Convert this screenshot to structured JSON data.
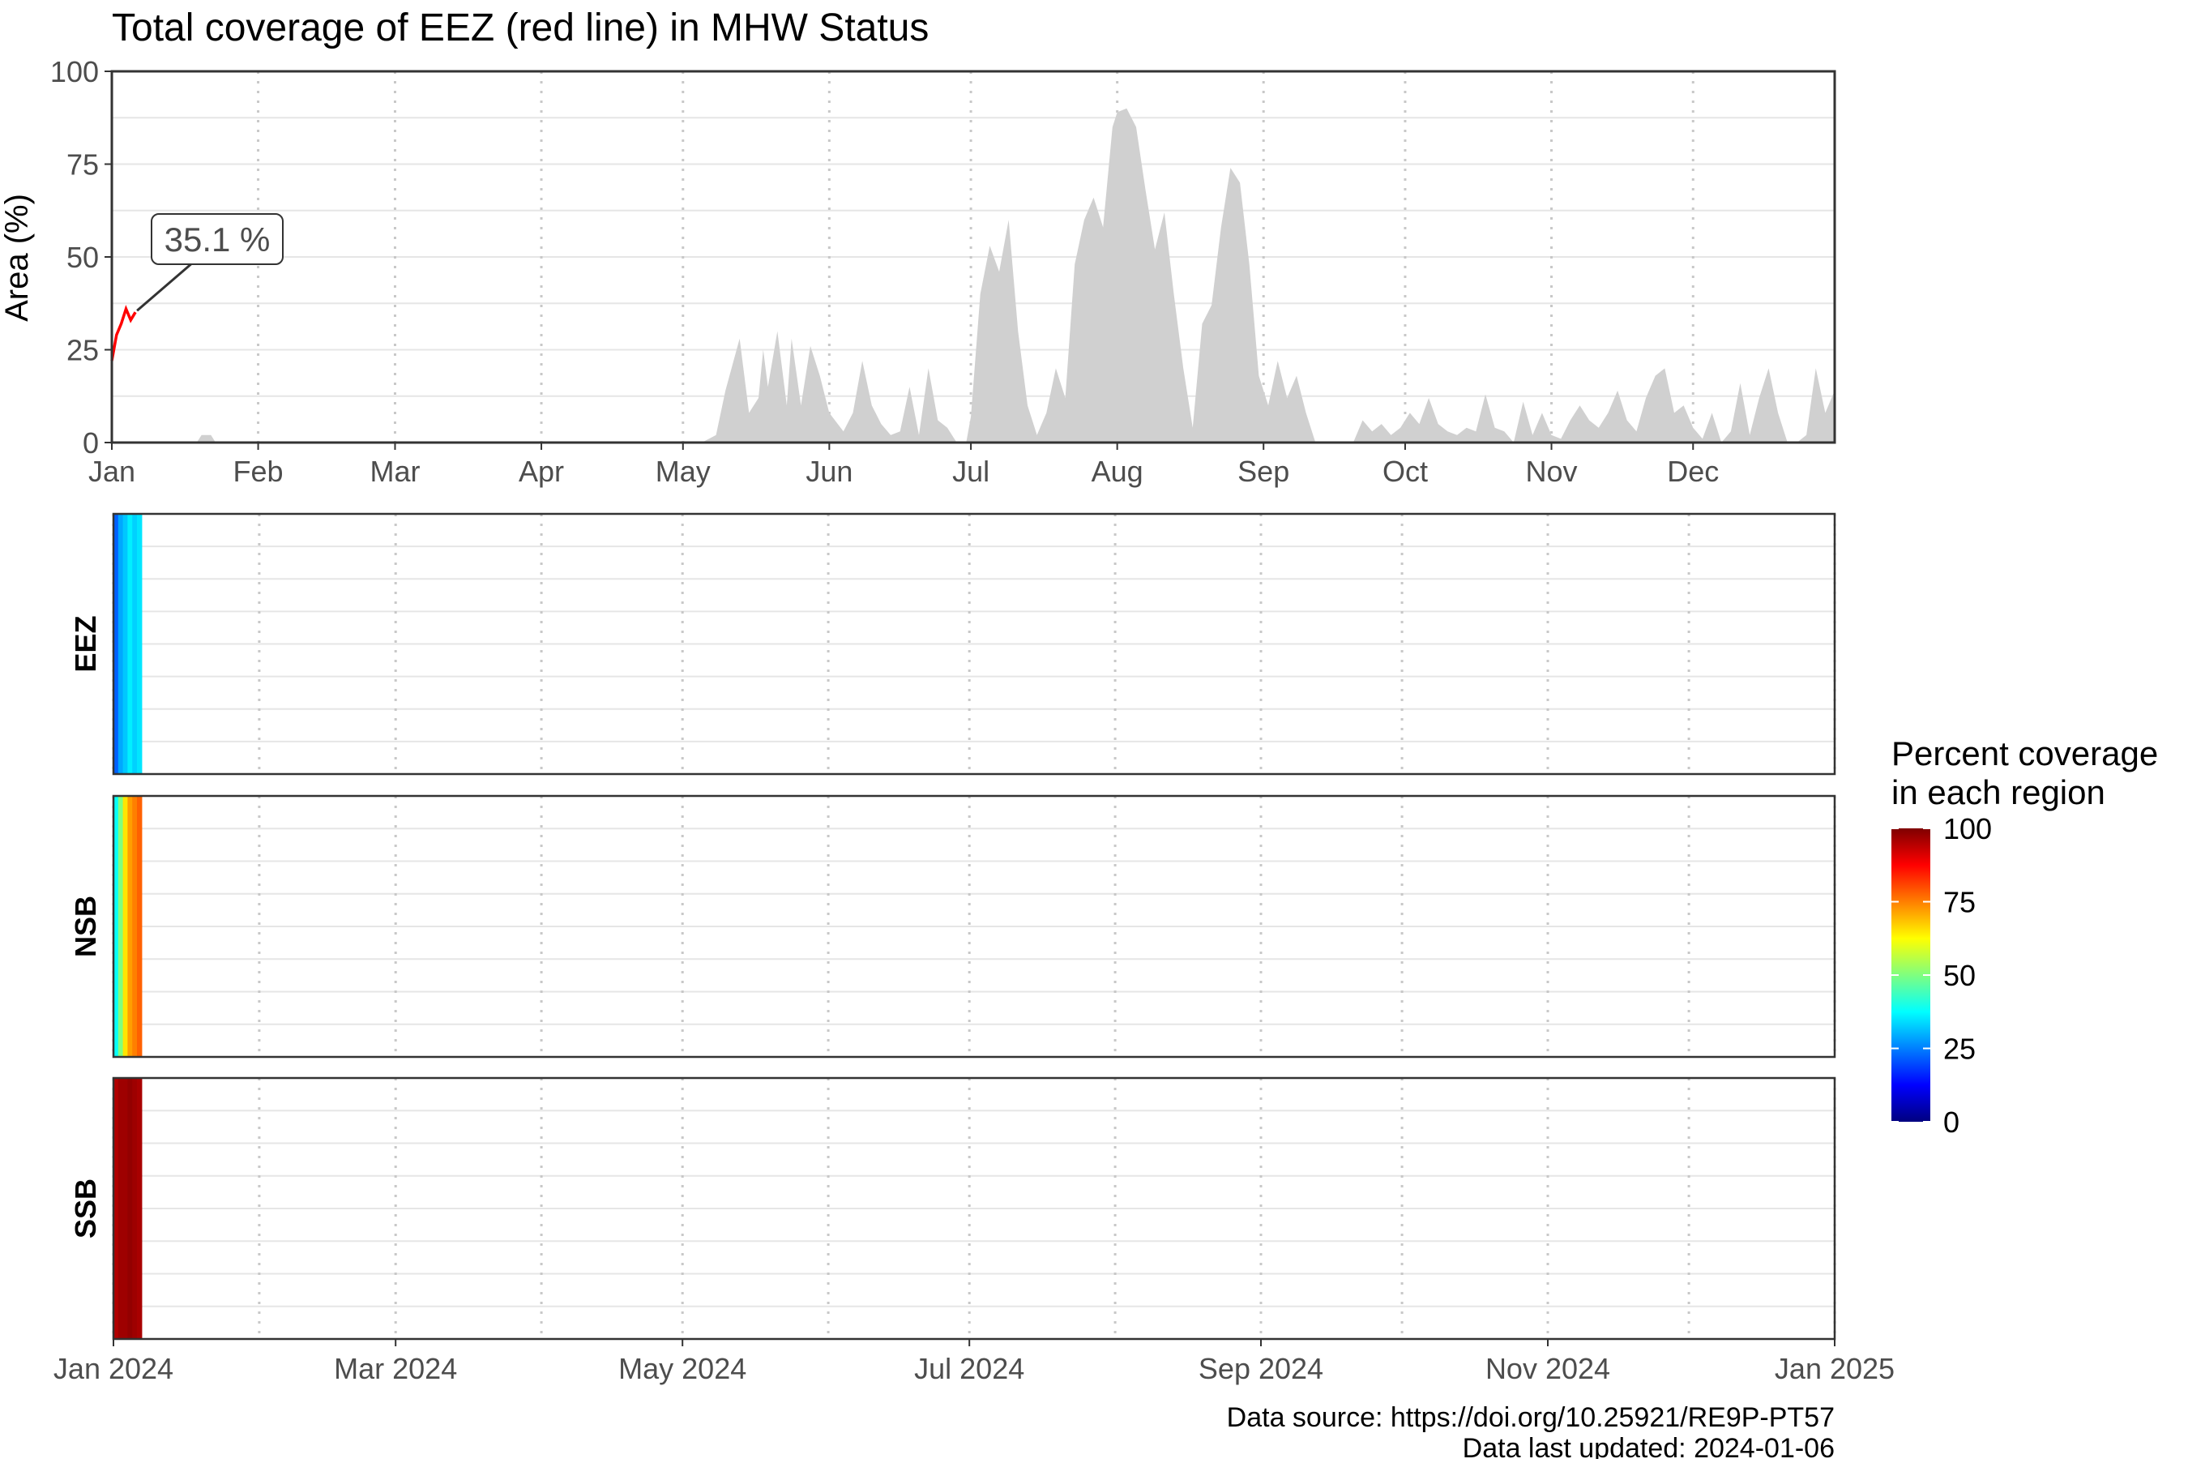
{
  "colors": {
    "red_line": "#ff0000",
    "area_fill": "#d0d0d0",
    "grid_major": "#e6e6e6",
    "grid_minor": "#c8c8c8",
    "frame": "#333333",
    "text": "#4d4d4d",
    "title_text": "#000000",
    "colorscale": [
      "#00007f",
      "#0000ff",
      "#007fff",
      "#00ffff",
      "#7fff7f",
      "#ffff00",
      "#ff7f00",
      "#ff0000",
      "#7f0000"
    ]
  },
  "chart_data": [
    {
      "type": "area",
      "title": "Total coverage of EEZ (red line) in MHW Status",
      "ylabel": "Area (%)",
      "xlabel": "",
      "ylim": [
        0,
        100
      ],
      "y_ticks": [
        0,
        25,
        50,
        75,
        100
      ],
      "x_tick_labels": [
        "Jan",
        "Feb",
        "Mar",
        "Apr",
        "May",
        "Jun",
        "Jul",
        "Aug",
        "Sep",
        "Oct",
        "Nov",
        "Dec"
      ],
      "x_tick_dates": [
        "2024-01-01",
        "2024-02-01",
        "2024-03-01",
        "2024-04-01",
        "2024-05-01",
        "2024-06-01",
        "2024-07-01",
        "2024-08-01",
        "2024-09-01",
        "2024-10-01",
        "2024-11-01",
        "2024-12-01"
      ],
      "xlim": [
        "2024-01-01",
        "2024-12-31"
      ],
      "grid": true,
      "annotation": {
        "label": "35.1 %",
        "date": "2024-01-06",
        "value": 35.1
      },
      "series": [
        {
          "name": "EEZ",
          "style": "line",
          "color": "#ff0000",
          "x": [
            "2024-01-01",
            "2024-01-02",
            "2024-01-03",
            "2024-01-04",
            "2024-01-05",
            "2024-01-06"
          ],
          "y": [
            22,
            29,
            32,
            36,
            33,
            35.1
          ]
        },
        {
          "style": "area",
          "color": "#d0d0d0",
          "x": [
            "2024-01-01",
            "2024-01-19",
            "2024-01-20",
            "2024-01-22",
            "2024-01-23",
            "2024-05-05",
            "2024-05-08",
            "2024-05-10",
            "2024-05-13",
            "2024-05-15",
            "2024-05-17",
            "2024-05-18",
            "2024-05-19",
            "2024-05-21",
            "2024-05-23",
            "2024-05-24",
            "2024-05-26",
            "2024-05-28",
            "2024-05-30",
            "2024-06-01",
            "2024-06-04",
            "2024-06-06",
            "2024-06-08",
            "2024-06-10",
            "2024-06-12",
            "2024-06-14",
            "2024-06-16",
            "2024-06-18",
            "2024-06-20",
            "2024-06-22",
            "2024-06-24",
            "2024-06-26",
            "2024-06-28",
            "2024-06-30",
            "2024-07-01",
            "2024-07-03",
            "2024-07-05",
            "2024-07-07",
            "2024-07-09",
            "2024-07-11",
            "2024-07-13",
            "2024-07-15",
            "2024-07-17",
            "2024-07-19",
            "2024-07-21",
            "2024-07-23",
            "2024-07-25",
            "2024-07-27",
            "2024-07-29",
            "2024-07-31",
            "2024-08-01",
            "2024-08-03",
            "2024-08-05",
            "2024-08-07",
            "2024-08-09",
            "2024-08-11",
            "2024-08-13",
            "2024-08-15",
            "2024-08-17",
            "2024-08-19",
            "2024-08-21",
            "2024-08-23",
            "2024-08-25",
            "2024-08-27",
            "2024-08-29",
            "2024-08-31",
            "2024-09-02",
            "2024-09-04",
            "2024-09-06",
            "2024-09-08",
            "2024-09-10",
            "2024-09-12",
            "2024-09-14",
            "2024-09-16",
            "2024-09-18",
            "2024-09-20",
            "2024-09-22",
            "2024-09-24",
            "2024-09-26",
            "2024-09-28",
            "2024-09-30",
            "2024-10-02",
            "2024-10-04",
            "2024-10-06",
            "2024-10-08",
            "2024-10-10",
            "2024-10-12",
            "2024-10-14",
            "2024-10-16",
            "2024-10-18",
            "2024-10-20",
            "2024-10-22",
            "2024-10-24",
            "2024-10-26",
            "2024-10-28",
            "2024-10-30",
            "2024-11-01",
            "2024-11-03",
            "2024-11-05",
            "2024-11-07",
            "2024-11-09",
            "2024-11-11",
            "2024-11-13",
            "2024-11-15",
            "2024-11-17",
            "2024-11-19",
            "2024-11-21",
            "2024-11-23",
            "2024-11-25",
            "2024-11-27",
            "2024-11-29",
            "2024-12-01",
            "2024-12-03",
            "2024-12-05",
            "2024-12-07",
            "2024-12-09",
            "2024-12-11",
            "2024-12-13",
            "2024-12-15",
            "2024-12-17",
            "2024-12-19",
            "2024-12-21",
            "2024-12-23",
            "2024-12-25",
            "2024-12-27",
            "2024-12-29",
            "2024-12-31"
          ],
          "y": [
            0,
            0,
            2,
            2,
            0,
            0,
            2,
            14,
            28,
            8,
            12,
            25,
            15,
            30,
            10,
            28,
            10,
            26,
            18,
            8,
            3,
            8,
            22,
            10,
            5,
            2,
            3,
            15,
            2,
            20,
            6,
            4,
            0,
            0,
            7,
            40,
            53,
            46,
            60,
            30,
            10,
            2,
            8,
            20,
            12,
            48,
            60,
            66,
            58,
            85,
            89,
            90,
            85,
            68,
            52,
            62,
            40,
            20,
            4,
            32,
            37,
            58,
            74,
            70,
            48,
            18,
            10,
            22,
            12,
            18,
            8,
            0,
            0,
            0,
            0,
            0,
            6,
            3,
            5,
            2,
            4,
            8,
            5,
            12,
            5,
            3,
            2,
            4,
            3,
            13,
            4,
            3,
            0,
            11,
            2,
            8,
            2,
            1,
            6,
            10,
            6,
            4,
            8,
            14,
            6,
            3,
            12,
            18,
            20,
            8,
            10,
            4,
            1,
            8,
            0,
            3,
            16,
            2,
            12,
            20,
            8,
            0,
            0,
            2,
            20,
            8,
            14
          ]
        }
      ]
    },
    {
      "type": "heatmap",
      "facet_labels": [
        "EEZ",
        "NSB",
        "SSB"
      ],
      "x_tick_labels": [
        "Jan 2024",
        "Mar 2024",
        "May 2024",
        "Jul 2024",
        "Sep 2024",
        "Nov 2024",
        "Jan 2025"
      ],
      "x_tick_dates": [
        "2024-01-01",
        "2024-03-01",
        "2024-05-01",
        "2024-07-01",
        "2024-09-01",
        "2024-11-01",
        "2025-01-01"
      ],
      "xlim": [
        "2024-01-01",
        "2025-01-01"
      ],
      "dates": [
        "2024-01-01",
        "2024-01-02",
        "2024-01-03",
        "2024-01-04",
        "2024-01-05",
        "2024-01-06"
      ],
      "values": {
        "EEZ": [
          22,
          29,
          32,
          36,
          33,
          35.1
        ],
        "NSB": [
          38,
          50,
          65,
          72,
          75,
          78
        ],
        "SSB": [
          95,
          97,
          97,
          98,
          97,
          96
        ]
      },
      "legend": {
        "title_line1": "Percent coverage",
        "title_line2": "in each region",
        "ticks": [
          0,
          25,
          50,
          75,
          100
        ],
        "range": [
          0,
          100
        ]
      },
      "caption_line1": "Data source: https://doi.org/10.25921/RE9P-PT57",
      "caption_line2": "Data last updated: 2024-01-06"
    }
  ]
}
